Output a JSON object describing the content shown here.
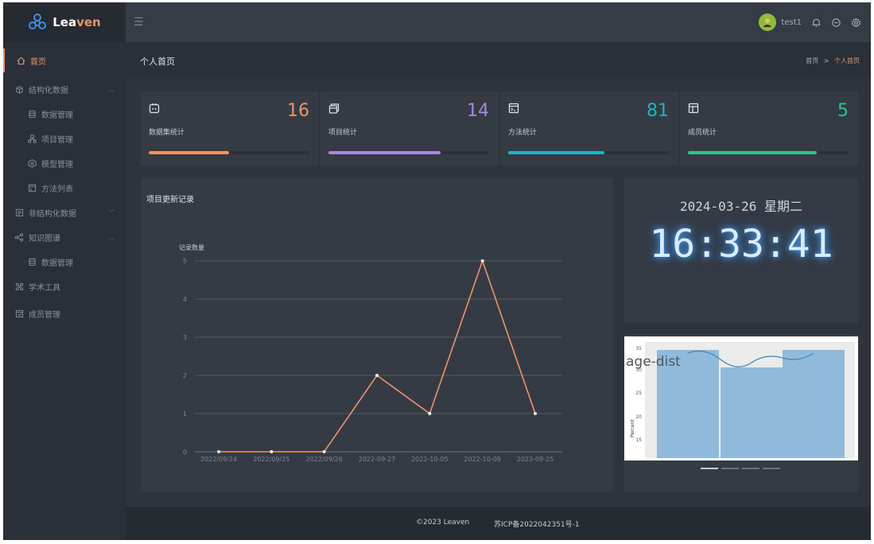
{
  "app": {
    "logo_text_a": "Lea",
    "logo_text_b": "ven"
  },
  "sidebar": {
    "items": [
      {
        "label": "首页",
        "icon": "home-icon"
      },
      {
        "label": "结构化数据",
        "icon": "cube-icon"
      },
      {
        "label": "数据管理",
        "icon": "database-icon"
      },
      {
        "label": "项目管理",
        "icon": "project-icon"
      },
      {
        "label": "模型管理",
        "icon": "model-icon"
      },
      {
        "label": "方法列表",
        "icon": "method-icon"
      },
      {
        "label": "非结构化数据",
        "icon": "file-icon"
      },
      {
        "label": "知识图谱",
        "icon": "graph-icon"
      },
      {
        "label": "数据管理",
        "icon": "database-icon"
      },
      {
        "label": "学术工具",
        "icon": "tool-icon"
      },
      {
        "label": "成员管理",
        "icon": "members-icon"
      }
    ]
  },
  "header": {
    "username": "test1"
  },
  "page": {
    "title": "个人首页",
    "breadcrumb_home": "首页",
    "breadcrumb_sep": ">",
    "breadcrumb_current": "个人首页"
  },
  "stats": [
    {
      "label": "数据集统计",
      "value": "16",
      "color": "#e9956a",
      "progress": 0.5
    },
    {
      "label": "项目统计",
      "value": "14",
      "color": "#a58ae0",
      "progress": 0.7
    },
    {
      "label": "方法统计",
      "value": "81",
      "color": "#1bb6c6",
      "progress": 0.6
    },
    {
      "label": "成员统计",
      "value": "5",
      "color": "#2ec68f",
      "progress": 0.8
    }
  ],
  "chart_data": {
    "type": "line",
    "title": "项目更新记录",
    "ylabel": "记录数量",
    "categories": [
      "2022/09/24",
      "2022/09/25",
      "2022/09/26",
      "2022-09-27",
      "2022-10-05",
      "2022-10-09",
      "2023-09-25"
    ],
    "values": [
      0,
      0,
      0,
      2,
      1,
      5,
      1
    ],
    "ylim": [
      0,
      5
    ],
    "yticks": [
      "0",
      "1",
      "2",
      "3",
      "4",
      "5"
    ],
    "grid": true,
    "color": "#e9956a"
  },
  "clock": {
    "date": "2024-03-26 星期二",
    "time": "16:33:41"
  },
  "carousel": {
    "overlay_text": "age-dist",
    "ylabel": "Percent",
    "yticks": [
      "15",
      "20",
      "25",
      "30",
      "35"
    ]
  },
  "footer": {
    "copyright": "©2023 Leaven",
    "icp": "苏ICP备2022042351号-1"
  }
}
